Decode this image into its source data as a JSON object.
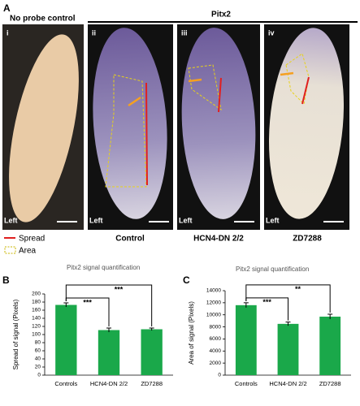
{
  "panel_a": {
    "label": "A",
    "no_probe_title": "No probe control",
    "pitx2_title": "Pitx2",
    "panels": [
      {
        "numeral": "i",
        "side": "Left"
      },
      {
        "numeral": "ii",
        "side": "Left",
        "caption": "Control"
      },
      {
        "numeral": "iii",
        "side": "Left",
        "caption": "HCN4-DN 2/2"
      },
      {
        "numeral": "iv",
        "side": "Left",
        "caption": "ZD7288"
      }
    ],
    "legend": [
      "Spread",
      "Area"
    ]
  },
  "chart_data": [
    {
      "type": "bar",
      "panel_label": "B",
      "title": "Pitx2 signal quantification",
      "y_label": "Spread of signal (Pixels)",
      "categories": [
        "Controls",
        "HCN4-DN 2/2",
        "ZD7288"
      ],
      "values": [
        173,
        111,
        113
      ],
      "errors": [
        5,
        5,
        3
      ],
      "color": "#1aa84a",
      "ylim": [
        0,
        200
      ],
      "yticks": [
        0,
        20,
        40,
        60,
        80,
        100,
        120,
        140,
        160,
        180,
        200
      ],
      "annotations": [
        "***",
        "***"
      ]
    },
    {
      "type": "bar",
      "panel_label": "C",
      "title": "Pitx2 signal quantification",
      "y_label": "Area of signal (Pixels)",
      "categories": [
        "Controls",
        "HCN4-DN 2/2",
        "ZD7288"
      ],
      "values": [
        11600,
        8500,
        9700
      ],
      "errors": [
        400,
        300,
        400
      ],
      "color": "#1aa84a",
      "ylim": [
        0,
        14000
      ],
      "yticks": [
        0,
        2000,
        4000,
        6000,
        8000,
        10000,
        12000,
        14000
      ],
      "annotations": [
        "***",
        "**"
      ]
    }
  ]
}
